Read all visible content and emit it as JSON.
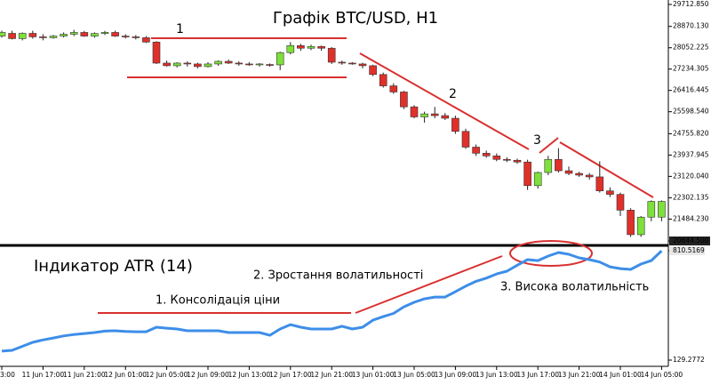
{
  "chart_data": [
    {
      "type": "candlestick",
      "title": "Графік BTC/USD, H1",
      "annotations": [
        "1",
        "2",
        "3"
      ],
      "categories": [
        "3:00",
        null,
        null,
        null,
        "11 Jun 17:00",
        null,
        null,
        null,
        "11 Jun 21:00",
        null,
        null,
        null,
        "12 Jun 01:00",
        null,
        null,
        null,
        "12 Jun 05:00",
        null,
        null,
        null,
        "12 Jun 09:00",
        null,
        null,
        null,
        "12 Jun 13:00",
        null,
        null,
        null,
        "12 Jun 17:00",
        null,
        null,
        null,
        "12 Jun 21:00",
        null,
        null,
        null,
        "13 Jun 01:00",
        null,
        null,
        null,
        "13 Jun 05:00",
        null,
        null,
        null,
        "13 Jun 09:00",
        null,
        null,
        null,
        "13 Jun 13:00",
        null,
        null,
        null,
        "13 Jun 17:00",
        null,
        null,
        null,
        "13 Jun 21:00",
        null,
        null,
        null,
        "14 Jun 01:00",
        null,
        null,
        null,
        "14 Jun 05:00"
      ],
      "open": [
        28500,
        28605,
        28403,
        28605,
        28470,
        28437,
        28500,
        28570,
        28640,
        28500,
        28600,
        28640,
        28500,
        28470,
        28437,
        28269,
        27464,
        27363,
        27464,
        27430,
        27330,
        27430,
        27531,
        27464,
        27430,
        27396,
        27410,
        27396,
        27866,
        28135,
        28034,
        28102,
        28034,
        27498,
        27464,
        27430,
        27363,
        27027,
        26591,
        26356,
        25786,
        25400,
        25517,
        25450,
        25349,
        24846,
        24242,
        24007,
        23906,
        23772,
        23738,
        23671,
        22765,
        23269,
        23772,
        23336,
        23235,
        23168,
        23101,
        22564,
        22430,
        21825,
        20886,
        21557,
        21557
      ],
      "high": [
        28705,
        28705,
        28640,
        28705,
        28570,
        28540,
        28640,
        28740,
        28700,
        28640,
        28700,
        28705,
        28570,
        28540,
        28500,
        28300,
        27560,
        27498,
        27531,
        27480,
        27498,
        27566,
        27600,
        27531,
        27500,
        27464,
        27450,
        27900,
        28269,
        28202,
        28170,
        28135,
        28080,
        27560,
        27500,
        27480,
        27400,
        27100,
        26690,
        26400,
        25850,
        25600,
        25785,
        25550,
        25450,
        24950,
        24343,
        24108,
        24000,
        23850,
        23800,
        23760,
        23300,
        23906,
        24200,
        23500,
        23300,
        23250,
        23700,
        22700,
        22500,
        21900,
        21600,
        22200,
        22200
      ],
      "low": [
        28437,
        28370,
        28336,
        28403,
        28336,
        28400,
        28450,
        28500,
        28470,
        28437,
        28540,
        28470,
        28403,
        28370,
        28235,
        27430,
        27330,
        27296,
        27330,
        27262,
        27296,
        27363,
        27430,
        27363,
        27363,
        27330,
        27330,
        27195,
        27799,
        27934,
        27960,
        27934,
        27430,
        27400,
        27400,
        27262,
        26960,
        26524,
        26289,
        25700,
        25350,
        25182,
        25350,
        25282,
        24750,
        24175,
        23906,
        23839,
        23700,
        23671,
        23600,
        22600,
        22650,
        23168,
        23269,
        23168,
        23100,
        23000,
        22500,
        22329,
        21600,
        20800,
        20800,
        21400,
        21400
      ],
      "close": [
        28640,
        28403,
        28605,
        28470,
        28437,
        28500,
        28570,
        28640,
        28500,
        28600,
        28640,
        28500,
        28470,
        28437,
        28269,
        27464,
        27363,
        27464,
        27430,
        27330,
        27430,
        27531,
        27464,
        27430,
        27396,
        27430,
        27396,
        27866,
        28135,
        28034,
        28102,
        28034,
        27498,
        27464,
        27430,
        27363,
        27027,
        26591,
        26356,
        25786,
        25400,
        25517,
        25450,
        25349,
        24846,
        24242,
        24007,
        23906,
        23772,
        23738,
        23671,
        22765,
        23269,
        23772,
        23336,
        23235,
        23168,
        23101,
        22564,
        22430,
        21825,
        20886,
        21557,
        22161,
        22161
      ],
      "up_color": "#7ee03a",
      "down_color": "#e0302a",
      "ylim": [
        20508,
        29883
      ],
      "yticks": [
        {
          "value": 29712.85,
          "label": "29712.850"
        },
        {
          "value": 28870.13,
          "label": "28870.130"
        },
        28052.225,
        27234.305,
        26416.445,
        {
          "value": 25598.54,
          "label": "25598.540"
        },
        {
          "value": 24755.82,
          "label": "24755.820"
        },
        23937.945,
        {
          "value": 23120.04,
          "label": "23120.040"
        },
        22302.135,
        {
          "value": 21484.23,
          "label": "21484.230"
        },
        {
          "value": 20644.5,
          "label": "20644.500"
        }
      ]
    },
    {
      "type": "line",
      "title": "Індикатор ATR (14)",
      "annotations": [
        "2. Зростання волатильності",
        "1. Консолідація ціни",
        "3. Висока волатильність"
      ],
      "values": [
        185,
        190,
        215,
        240,
        255,
        267,
        280,
        289,
        295,
        301,
        310,
        312,
        308,
        306,
        306,
        334,
        328,
        323,
        312,
        312,
        312,
        312,
        301,
        301,
        301,
        301,
        284,
        323,
        350,
        334,
        323,
        323,
        323,
        340,
        323,
        334,
        378,
        400,
        420,
        461,
        489,
        511,
        522,
        522,
        555,
        590,
        620,
        640,
        666,
        683,
        720,
        755,
        749,
        777,
        799,
        788,
        766,
        755,
        740,
        710,
        699,
        694,
        727,
        749,
        810
      ],
      "color": "#3d8ee8",
      "ylim": [
        101.6,
        838
      ],
      "yticks": [
        810.5169,
        129.2772
      ]
    }
  ]
}
